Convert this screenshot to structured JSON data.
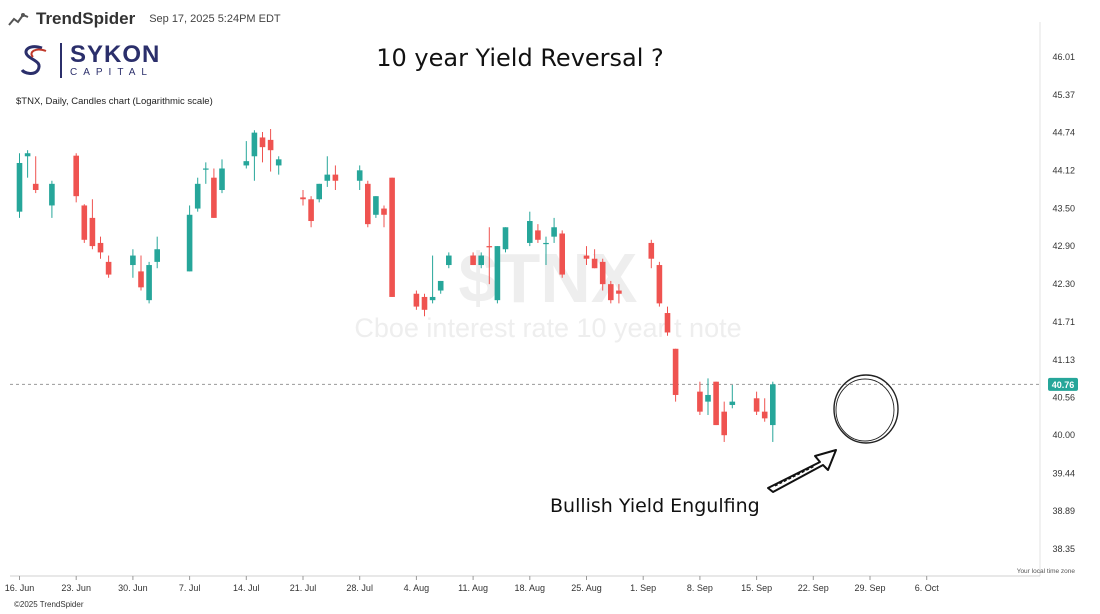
{
  "header": {
    "brand": "TrendSpider",
    "timestamp": "Sep 17, 2025 5:24PM EDT",
    "logo_word1": "SYKON",
    "logo_word2": "CAPITAL",
    "title": "10 year Yield Reversal ?",
    "subtitle": "$TNX, Daily, Candles chart (Logarithmic scale)"
  },
  "footer": {
    "copyright": "©2025 TrendSpider"
  },
  "colors": {
    "up": "#26a69a",
    "down": "#ef5350",
    "price_badge": "#26a69a"
  },
  "chart_data": {
    "type": "candlestick",
    "yscale": "log",
    "ylim": [
      38.2,
      46.3
    ],
    "y_ticks": [
      "46.01",
      "45.37",
      "44.74",
      "44.12",
      "43.50",
      "42.90",
      "42.30",
      "41.71",
      "41.13",
      "40.56",
      "40.00",
      "39.44",
      "38.89",
      "38.35"
    ],
    "x_ticks": [
      "16. Jun",
      "23. Jun",
      "30. Jun",
      "7. Jul",
      "14. Jul",
      "21. Jul",
      "28. Jul",
      "4. Aug",
      "11. Aug",
      "18. Aug",
      "25. Aug",
      "1. Sep",
      "8. Sep",
      "15. Sep",
      "22. Sep",
      "29. Sep",
      "6. Oct"
    ],
    "time_zone_label": "Your local time zone",
    "watermark_symbol": "$TNX",
    "watermark_name": "Cboe interest rate 10 year t note",
    "last_price": "40.76",
    "annotation": "Bullish Yield Engulfing",
    "candles": [
      {
        "date": "2025-06-16",
        "open": 43.45,
        "high": 44.4,
        "low": 43.35,
        "close": 44.24
      },
      {
        "date": "2025-06-17",
        "open": 44.35,
        "high": 44.45,
        "low": 44.0,
        "close": 44.4
      },
      {
        "date": "2025-06-18",
        "open": 43.9,
        "high": 44.35,
        "low": 43.75,
        "close": 43.8
      },
      {
        "date": "2025-06-20",
        "open": 43.55,
        "high": 43.95,
        "low": 43.35,
        "close": 43.9
      },
      {
        "date": "2025-06-23",
        "open": 44.36,
        "high": 44.4,
        "low": 43.6,
        "close": 43.7
      },
      {
        "date": "2025-06-24",
        "open": 43.55,
        "high": 43.57,
        "low": 42.95,
        "close": 43.0
      },
      {
        "date": "2025-06-25",
        "open": 43.35,
        "high": 43.65,
        "low": 42.85,
        "close": 42.9
      },
      {
        "date": "2025-06-26",
        "open": 42.95,
        "high": 43.05,
        "low": 42.7,
        "close": 42.8
      },
      {
        "date": "2025-06-27",
        "open": 42.65,
        "high": 42.75,
        "low": 42.4,
        "close": 42.45
      },
      {
        "date": "2025-06-30",
        "open": 42.6,
        "high": 42.85,
        "low": 42.4,
        "close": 42.75
      },
      {
        "date": "2025-07-01",
        "open": 42.5,
        "high": 42.75,
        "low": 42.2,
        "close": 42.25
      },
      {
        "date": "2025-07-02",
        "open": 42.05,
        "high": 42.65,
        "low": 42.0,
        "close": 42.6
      },
      {
        "date": "2025-07-03",
        "open": 42.65,
        "high": 43.05,
        "low": 42.55,
        "close": 42.85
      },
      {
        "date": "2025-07-07",
        "open": 42.5,
        "high": 43.55,
        "low": 42.5,
        "close": 43.4
      },
      {
        "date": "2025-07-08",
        "open": 43.5,
        "high": 44.0,
        "low": 43.45,
        "close": 43.9
      },
      {
        "date": "2025-07-09",
        "open": 44.15,
        "high": 44.25,
        "low": 43.9,
        "close": 44.15
      },
      {
        "date": "2025-07-10",
        "open": 44.0,
        "high": 44.15,
        "low": 43.35,
        "close": 43.35
      },
      {
        "date": "2025-07-11",
        "open": 43.8,
        "high": 44.3,
        "low": 43.75,
        "close": 44.15
      },
      {
        "date": "2025-07-14",
        "open": 44.2,
        "high": 44.6,
        "low": 44.15,
        "close": 44.27
      },
      {
        "date": "2025-07-15",
        "open": 44.35,
        "high": 44.78,
        "low": 43.95,
        "close": 44.74
      },
      {
        "date": "2025-07-16",
        "open": 44.66,
        "high": 44.75,
        "low": 44.25,
        "close": 44.5
      },
      {
        "date": "2025-07-17",
        "open": 44.62,
        "high": 44.8,
        "low": 44.1,
        "close": 44.45
      },
      {
        "date": "2025-07-18",
        "open": 44.2,
        "high": 44.35,
        "low": 44.05,
        "close": 44.3
      },
      {
        "date": "2025-07-21",
        "open": 43.68,
        "high": 43.8,
        "low": 43.55,
        "close": 43.65
      },
      {
        "date": "2025-07-22",
        "open": 43.65,
        "high": 43.7,
        "low": 43.2,
        "close": 43.3
      },
      {
        "date": "2025-07-23",
        "open": 43.65,
        "high": 43.9,
        "low": 43.6,
        "close": 43.9
      },
      {
        "date": "2025-07-24",
        "open": 43.95,
        "high": 44.35,
        "low": 43.85,
        "close": 44.05
      },
      {
        "date": "2025-07-25",
        "open": 44.05,
        "high": 44.2,
        "low": 43.8,
        "close": 43.95
      },
      {
        "date": "2025-07-28",
        "open": 43.95,
        "high": 44.2,
        "low": 43.8,
        "close": 44.12
      },
      {
        "date": "2025-07-29",
        "open": 43.9,
        "high": 43.95,
        "low": 43.2,
        "close": 43.25
      },
      {
        "date": "2025-07-30",
        "open": 43.4,
        "high": 43.7,
        "low": 43.35,
        "close": 43.7
      },
      {
        "date": "2025-07-31",
        "open": 43.5,
        "high": 43.55,
        "low": 43.2,
        "close": 43.4
      },
      {
        "date": "2025-08-01",
        "open": 44.0,
        "high": 44.0,
        "low": 42.1,
        "close": 42.1
      },
      {
        "date": "2025-08-04",
        "open": 42.15,
        "high": 42.2,
        "low": 41.9,
        "close": 41.95
      },
      {
        "date": "2025-08-05",
        "open": 42.1,
        "high": 42.15,
        "low": 41.8,
        "close": 41.9
      },
      {
        "date": "2025-08-06",
        "open": 42.05,
        "high": 42.75,
        "low": 42.0,
        "close": 42.1
      },
      {
        "date": "2025-08-07",
        "open": 42.2,
        "high": 42.35,
        "low": 42.15,
        "close": 42.35
      },
      {
        "date": "2025-08-08",
        "open": 42.6,
        "high": 42.8,
        "low": 42.55,
        "close": 42.75
      },
      {
        "date": "2025-08-11",
        "open": 42.75,
        "high": 42.8,
        "low": 42.6,
        "close": 42.6
      },
      {
        "date": "2025-08-12",
        "open": 42.6,
        "high": 42.8,
        "low": 42.55,
        "close": 42.75
      },
      {
        "date": "2025-08-13",
        "open": 42.9,
        "high": 43.2,
        "low": 42.3,
        "close": 42.88
      },
      {
        "date": "2025-08-14",
        "open": 42.05,
        "high": 42.9,
        "low": 42.0,
        "close": 42.9
      },
      {
        "date": "2025-08-15",
        "open": 42.85,
        "high": 43.2,
        "low": 42.8,
        "close": 43.2
      },
      {
        "date": "2025-08-18",
        "open": 42.95,
        "high": 43.45,
        "low": 42.9,
        "close": 43.3
      },
      {
        "date": "2025-08-19",
        "open": 43.15,
        "high": 43.25,
        "low": 42.95,
        "close": 43.0
      },
      {
        "date": "2025-08-20",
        "open": 42.95,
        "high": 43.05,
        "low": 42.6,
        "close": 42.95
      },
      {
        "date": "2025-08-21",
        "open": 43.05,
        "high": 43.35,
        "low": 42.95,
        "close": 43.2
      },
      {
        "date": "2025-08-22",
        "open": 43.1,
        "high": 43.15,
        "low": 42.4,
        "close": 42.45
      },
      {
        "date": "2025-08-25",
        "open": 42.75,
        "high": 42.9,
        "low": 42.6,
        "close": 42.7
      },
      {
        "date": "2025-08-26",
        "open": 42.7,
        "high": 42.85,
        "low": 42.55,
        "close": 42.55
      },
      {
        "date": "2025-08-27",
        "open": 42.65,
        "high": 42.7,
        "low": 42.2,
        "close": 42.3
      },
      {
        "date": "2025-08-28",
        "open": 42.3,
        "high": 42.35,
        "low": 42.0,
        "close": 42.05
      },
      {
        "date": "2025-08-29",
        "open": 42.2,
        "high": 42.3,
        "low": 42.0,
        "close": 42.15
      },
      {
        "date": "2025-09-02",
        "open": 42.95,
        "high": 43.0,
        "low": 42.55,
        "close": 42.7
      },
      {
        "date": "2025-09-03",
        "open": 42.6,
        "high": 42.65,
        "low": 41.95,
        "close": 42.0
      },
      {
        "date": "2025-09-04",
        "open": 41.85,
        "high": 41.95,
        "low": 41.5,
        "close": 41.55
      },
      {
        "date": "2025-09-05",
        "open": 41.3,
        "high": 41.3,
        "low": 40.5,
        "close": 40.6
      },
      {
        "date": "2025-09-08",
        "open": 40.65,
        "high": 40.8,
        "low": 40.3,
        "close": 40.35
      },
      {
        "date": "2025-09-09",
        "open": 40.5,
        "high": 40.85,
        "low": 40.3,
        "close": 40.6
      },
      {
        "date": "2025-09-10",
        "open": 40.8,
        "high": 40.8,
        "low": 40.15,
        "close": 40.15
      },
      {
        "date": "2025-09-11",
        "open": 40.35,
        "high": 40.5,
        "low": 39.9,
        "close": 40.0
      },
      {
        "date": "2025-09-12",
        "open": 40.45,
        "high": 40.75,
        "low": 40.4,
        "close": 40.5
      },
      {
        "date": "2025-09-15",
        "open": 40.55,
        "high": 40.65,
        "low": 40.3,
        "close": 40.35
      },
      {
        "date": "2025-09-16",
        "open": 40.35,
        "high": 40.55,
        "low": 40.2,
        "close": 40.25
      },
      {
        "date": "2025-09-17",
        "open": 40.15,
        "high": 40.8,
        "low": 39.9,
        "close": 40.76
      }
    ]
  }
}
